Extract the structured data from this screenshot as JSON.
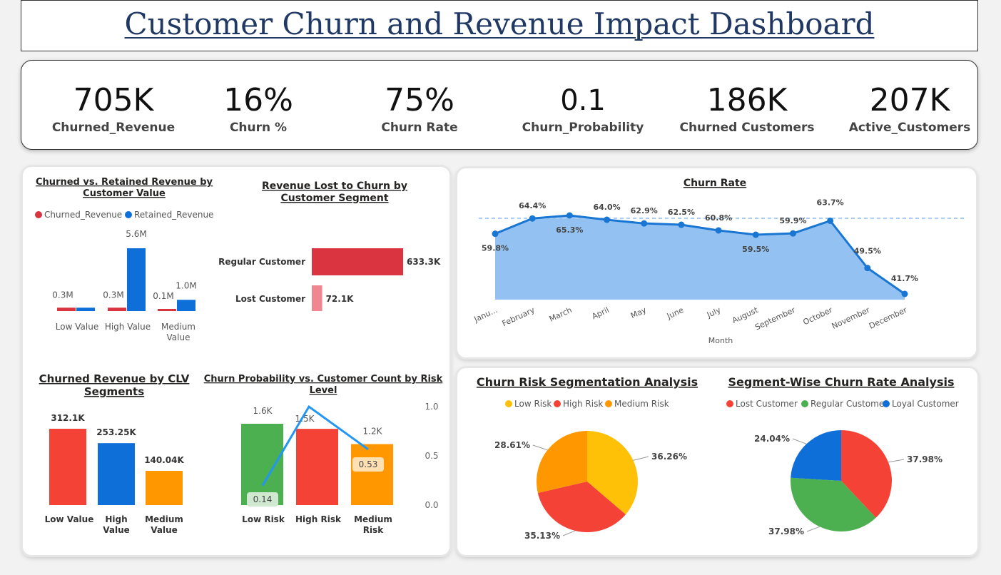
{
  "title": "Customer Churn and Revenue Impact Dashboard",
  "kpis": [
    {
      "value": "705K",
      "label": "Churned_Revenue"
    },
    {
      "value": "16%",
      "label": "Churn %"
    },
    {
      "value": "75%",
      "label": "Churn Rate"
    },
    {
      "value": "0.1",
      "label": "Churn_Probability"
    },
    {
      "value": "186K",
      "label": "Churned Customers"
    },
    {
      "value": "207K",
      "label": "Active_Customers"
    }
  ],
  "colors": {
    "churned": "#d9343f",
    "retained": "#0f6fd8",
    "red": "#f44336",
    "blue": "#0f6fd8",
    "orange": "#ff9800",
    "green": "#4caf50",
    "yellow": "#ffc107",
    "line": "#1976d2",
    "area": "#93c2f2",
    "pink": "#f08790"
  },
  "chart_data": [
    {
      "type": "bar",
      "title": "Churned vs. Retained Revenue by Customer Value",
      "categories": [
        "Low Value",
        "High Value",
        "Medium Value"
      ],
      "series": [
        {
          "name": "Churned_Revenue",
          "values": [
            0.3,
            0.3,
            0.1
          ],
          "labels": [
            "0.3M",
            "0.3M",
            "0.1M"
          ]
        },
        {
          "name": "Retained_Revenue",
          "values": [
            0.3,
            5.6,
            1.0
          ],
          "labels": [
            "",
            "5.6M",
            "1.0M"
          ]
        }
      ]
    },
    {
      "type": "bar",
      "title": "Revenue Lost to Churn by Customer Segment",
      "categories": [
        "Regular Customer",
        "Lost Customer"
      ],
      "values": [
        633.3,
        72.1
      ],
      "labels": [
        "633.3K",
        "72.1K"
      ]
    },
    {
      "type": "area",
      "title": "Churn Rate",
      "xlabel": "Month",
      "categories": [
        "January",
        "February",
        "March",
        "April",
        "May",
        "June",
        "July",
        "August",
        "September",
        "October",
        "November",
        "December"
      ],
      "tick_labels": [
        "Janu...",
        "February",
        "March",
        "April",
        "May",
        "June",
        "July",
        "August",
        "September",
        "October",
        "November",
        "December"
      ],
      "values": [
        59.8,
        64.4,
        65.3,
        64.0,
        62.9,
        62.5,
        60.8,
        59.5,
        59.9,
        63.7,
        49.5,
        41.7
      ],
      "labels": [
        "59.8%",
        "64.4%",
        "65.3%",
        "64.0%",
        "62.9%",
        "62.5%",
        "60.8%",
        "59.5%",
        "59.9%",
        "63.7%",
        "49.5%",
        "41.7%"
      ]
    },
    {
      "type": "bar",
      "title": "Churned Revenue by CLV Segments",
      "categories": [
        "Low Value",
        "High Value",
        "Medium Value"
      ],
      "values": [
        312.1,
        253.25,
        140.04
      ],
      "labels": [
        "312.1K",
        "253.25K",
        "140.04K"
      ]
    },
    {
      "type": "bar",
      "title": "Churn Probability vs. Customer Count by Risk Level",
      "categories": [
        "Low Risk",
        "High Risk",
        "Medium Risk"
      ],
      "series": [
        {
          "name": "Customer Count",
          "values": [
            1.6,
            1.5,
            1.2
          ],
          "labels": [
            "1.6K",
            "1.5K",
            "1.2K"
          ]
        },
        {
          "name": "Churn Probability",
          "values": [
            0.14,
            1.0,
            0.53
          ],
          "labels": [
            "0.14",
            "",
            "0.53"
          ]
        }
      ],
      "y2_ticks": [
        "1.0",
        "0.5",
        "0.0"
      ]
    },
    {
      "type": "pie",
      "title": "Churn Risk Segmentation Analysis",
      "categories": [
        "Low Risk",
        "High Risk",
        "Medium Risk"
      ],
      "values": [
        36.26,
        35.13,
        28.61
      ],
      "labels": [
        "36.26%",
        "35.13%",
        "28.61%"
      ]
    },
    {
      "type": "pie",
      "title": "Segment-Wise Churn Rate Analysis",
      "categories": [
        "Lost Customer",
        "Regular Customer",
        "Loyal Customer"
      ],
      "values": [
        37.98,
        37.98,
        24.04
      ],
      "labels": [
        "37.98%",
        "37.98%",
        "24.04%"
      ]
    }
  ]
}
